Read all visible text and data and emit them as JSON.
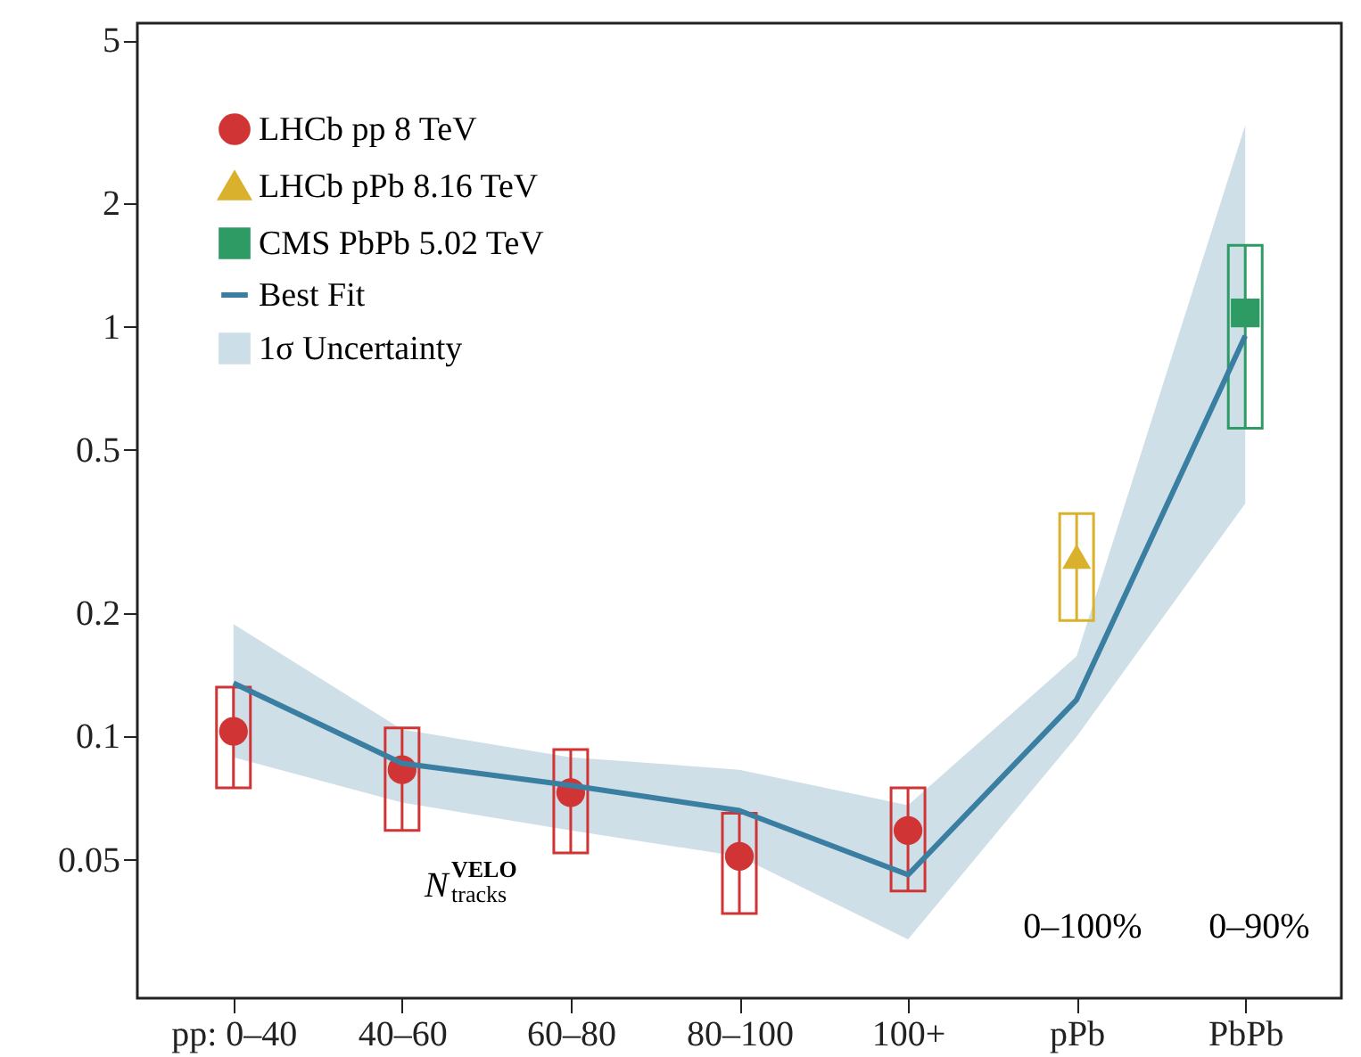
{
  "chart_data": {
    "type": "scatter",
    "categories": [
      "pp: 0–40",
      "40–60",
      "60–80",
      "80–100",
      "100+",
      "pPb",
      "PbPb"
    ],
    "series": [
      {
        "name": "LHCb pp 8 TeV",
        "marker": "circle",
        "color": "#d03434",
        "x": [
          "pp: 0–40",
          "40–60",
          "60–80",
          "80–100",
          "100+"
        ],
        "values": [
          0.103,
          0.083,
          0.073,
          0.051,
          0.059
        ],
        "errors": [
          [
            0.075,
            0.132
          ],
          [
            0.059,
            0.105
          ],
          [
            0.052,
            0.093
          ],
          [
            0.037,
            0.065
          ],
          [
            0.042,
            0.075
          ]
        ]
      },
      {
        "name": "LHCb pPb 8.16 TeV",
        "marker": "triangle",
        "color": "#d9b12c",
        "x": [
          "pPb"
        ],
        "values": [
          0.275
        ],
        "errors": [
          [
            0.192,
            0.35
          ]
        ]
      },
      {
        "name": "CMS PbPb 5.02 TeV",
        "marker": "square",
        "color": "#2e9a64",
        "x": [
          "PbPb"
        ],
        "values": [
          1.08
        ],
        "errors": [
          [
            0.565,
            1.58
          ]
        ]
      },
      {
        "name": "Best Fit",
        "type": "line",
        "color": "#3a7ea1",
        "line_style": "solid",
        "x": [
          "pp: 0–40",
          "40–60",
          "60–80",
          "80–100",
          "100+",
          "pPb",
          "PbPb"
        ],
        "values": [
          0.135,
          0.086,
          0.076,
          0.066,
          0.046,
          0.123,
          0.95
        ],
        "lower": [
          0.089,
          0.069,
          0.059,
          0.051,
          0.032,
          0.1,
          0.37
        ],
        "upper": [
          0.188,
          0.104,
          0.089,
          0.083,
          0.068,
          0.157,
          3.1
        ]
      }
    ],
    "log": true,
    "ylim": [
      0.023,
      5.5
    ],
    "yticks": [
      0.05,
      0.1,
      0.2,
      0.5,
      1,
      2,
      5
    ],
    "grid": false,
    "legend": "top left",
    "annotations": [
      "1σ Uncertainty",
      "N$^{VELO}$$_{tracks}$",
      "0–100%",
      "0–90%"
    ]
  }
}
